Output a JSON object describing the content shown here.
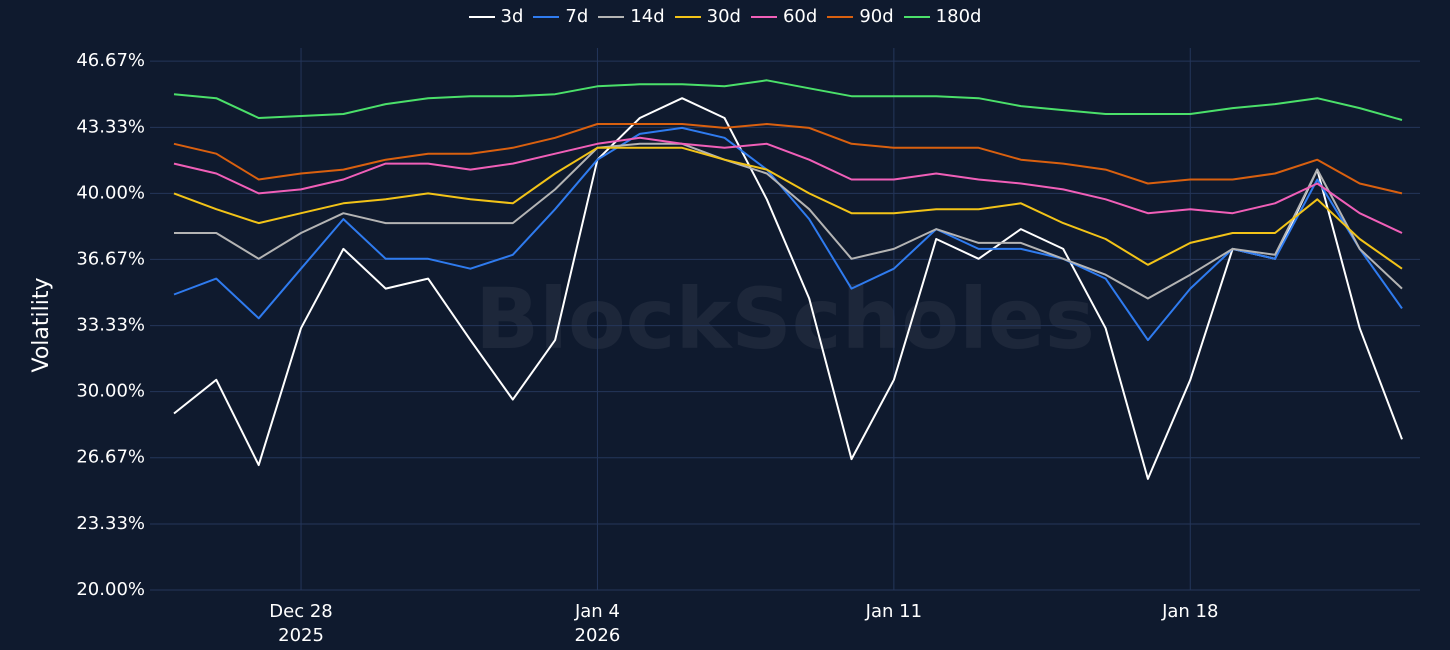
{
  "chart_data": {
    "type": "line",
    "y_label": "Volatility",
    "watermark": "BlockScholes",
    "legend": "top",
    "grid": true,
    "x": [
      "2025-12-25",
      "2025-12-26",
      "2025-12-27",
      "2025-12-28",
      "2025-12-29",
      "2025-12-30",
      "2025-12-31",
      "2026-01-01",
      "2026-01-02",
      "2026-01-03",
      "2026-01-04",
      "2026-01-05",
      "2026-01-06",
      "2026-01-07",
      "2026-01-08",
      "2026-01-09",
      "2026-01-10",
      "2026-01-11",
      "2026-01-12",
      "2026-01-13",
      "2026-01-14",
      "2026-01-15",
      "2026-01-16",
      "2026-01-17",
      "2026-01-18",
      "2026-01-19",
      "2026-01-20",
      "2026-01-21",
      "2026-01-22",
      "2026-01-23"
    ],
    "xlim": [
      "2025-12-25",
      "2026-01-23"
    ],
    "xticks": [
      {
        "value": "2025-12-28",
        "label": "Dec 28\n2025"
      },
      {
        "value": "2026-01-04",
        "label": "Jan 4\n2026"
      },
      {
        "value": "2026-01-11",
        "label": "Jan 11"
      },
      {
        "value": "2026-01-18",
        "label": "Jan 18"
      }
    ],
    "ylim": [
      20,
      47.33
    ],
    "yticks": [
      {
        "value": 20,
        "label": "20.00%"
      },
      {
        "value": 23.33,
        "label": "23.33%"
      },
      {
        "value": 26.67,
        "label": "26.67%"
      },
      {
        "value": 30,
        "label": "30.00%"
      },
      {
        "value": 33.33,
        "label": "33.33%"
      },
      {
        "value": 36.67,
        "label": "36.67%"
      },
      {
        "value": 40,
        "label": "40.00%"
      },
      {
        "value": 43.33,
        "label": "43.33%"
      },
      {
        "value": 46.67,
        "label": "46.67%"
      }
    ],
    "series": [
      {
        "name": "3d",
        "color": "#ffffff",
        "values": [
          28.9,
          30.6,
          26.3,
          33.2,
          37.2,
          35.2,
          35.7,
          32.6,
          29.6,
          32.6,
          41.7,
          43.8,
          44.8,
          43.8,
          39.7,
          34.7,
          26.6,
          30.6,
          37.7,
          36.7,
          38.2,
          37.2,
          33.2,
          25.6,
          30.6,
          37.2,
          36.7,
          41.2,
          33.2,
          27.6
        ]
      },
      {
        "name": "7d",
        "color": "#2f7bef",
        "values": [
          34.9,
          35.7,
          33.7,
          36.2,
          38.7,
          36.7,
          36.7,
          36.2,
          36.9,
          39.2,
          41.7,
          43.0,
          43.3,
          42.8,
          41.2,
          38.7,
          35.2,
          36.2,
          38.2,
          37.2,
          37.2,
          36.7,
          35.7,
          32.6,
          35.2,
          37.2,
          36.7,
          40.7,
          37.2,
          34.2
        ]
      },
      {
        "name": "14d",
        "color": "#b4b4b4",
        "values": [
          38.0,
          38.0,
          36.7,
          38.0,
          39.0,
          38.5,
          38.5,
          38.5,
          38.5,
          40.2,
          42.3,
          42.5,
          42.5,
          41.7,
          41.0,
          39.2,
          36.7,
          37.2,
          38.2,
          37.5,
          37.5,
          36.7,
          35.9,
          34.7,
          35.9,
          37.2,
          36.9,
          41.2,
          37.2,
          35.2
        ]
      },
      {
        "name": "30d",
        "color": "#f2c318",
        "values": [
          40.0,
          39.2,
          38.5,
          39.0,
          39.5,
          39.7,
          40.0,
          39.7,
          39.5,
          41.0,
          42.3,
          42.3,
          42.3,
          41.7,
          41.2,
          40.0,
          39.0,
          39.0,
          39.2,
          39.2,
          39.5,
          38.5,
          37.7,
          36.4,
          37.5,
          38.0,
          38.0,
          39.7,
          37.7,
          36.2
        ]
      },
      {
        "name": "60d",
        "color": "#f05fb8",
        "values": [
          41.5,
          41.0,
          40.0,
          40.2,
          40.7,
          41.5,
          41.5,
          41.2,
          41.5,
          42.0,
          42.5,
          42.8,
          42.5,
          42.3,
          42.5,
          41.7,
          40.7,
          40.7,
          41.0,
          40.7,
          40.5,
          40.2,
          39.7,
          39.0,
          39.2,
          39.0,
          39.5,
          40.5,
          39.0,
          38.0
        ]
      },
      {
        "name": "90d",
        "color": "#d9600f",
        "values": [
          42.5,
          42.0,
          40.7,
          41.0,
          41.2,
          41.7,
          42.0,
          42.0,
          42.3,
          42.8,
          43.5,
          43.5,
          43.5,
          43.3,
          43.5,
          43.3,
          42.5,
          42.3,
          42.3,
          42.3,
          41.7,
          41.5,
          41.2,
          40.5,
          40.7,
          40.7,
          41.0,
          41.7,
          40.5,
          40.0
        ]
      },
      {
        "name": "180d",
        "color": "#4be06a",
        "values": [
          45.0,
          44.8,
          43.8,
          43.9,
          44.0,
          44.5,
          44.8,
          44.9,
          44.9,
          45.0,
          45.4,
          45.5,
          45.5,
          45.4,
          45.7,
          45.3,
          44.9,
          44.9,
          44.9,
          44.8,
          44.4,
          44.2,
          44.0,
          44.0,
          44.0,
          44.3,
          44.5,
          44.8,
          44.3,
          43.7
        ]
      }
    ]
  }
}
